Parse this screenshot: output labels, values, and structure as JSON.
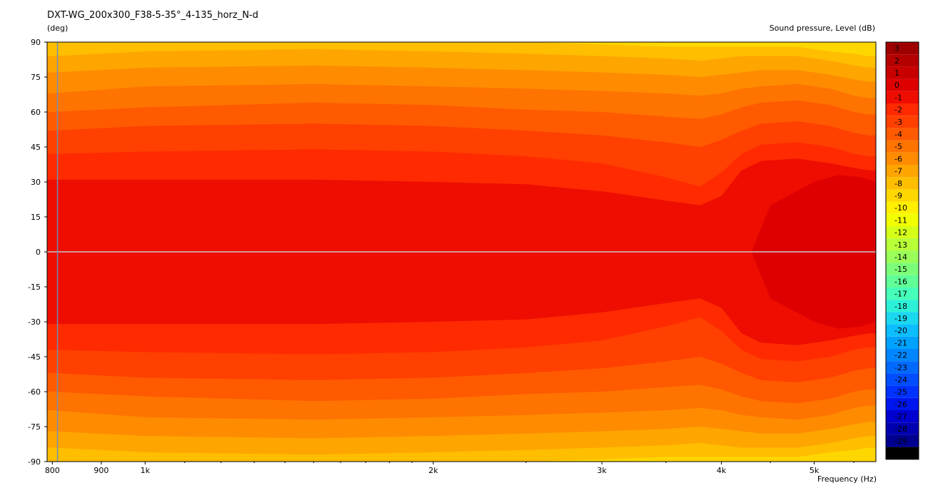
{
  "title": "DXT-WG_200x300_F38-5-35°_4-135_horz_N-d",
  "y_unit": "(deg)",
  "colorbar_label": "Sound pressure, Level  (dB)",
  "x_unit": "Frequency  (Hz)",
  "chart_data": {
    "type": "heatmap",
    "x_scale": "log",
    "xlim": [
      790,
      5800
    ],
    "ylim": [
      -90,
      90
    ],
    "x_ticks": [
      800,
      900,
      1000,
      2000,
      3000,
      4000,
      5000
    ],
    "x_tick_labels": [
      "800",
      "900",
      "1k",
      "2k",
      "3k",
      "4k",
      "5k"
    ],
    "y_ticks": [
      90,
      75,
      60,
      45,
      30,
      15,
      0,
      -15,
      -30,
      -45,
      -60,
      -75,
      -90
    ],
    "y_tick_labels": [
      "90",
      "75",
      "60",
      "45",
      "30",
      "15",
      "0",
      "-15",
      "-30",
      "-45",
      "-60",
      "-75",
      "-90"
    ],
    "colorbar_levels": [
      3,
      2,
      1,
      0,
      -1,
      -2,
      -3,
      -4,
      -5,
      -6,
      -7,
      -8,
      -9,
      -10,
      -11,
      -12,
      -13,
      -14,
      -15,
      -16,
      -17,
      -18,
      -19,
      -20,
      -21,
      -22,
      -23,
      -24,
      -25,
      -26,
      -27,
      -28,
      -29,
      -30
    ],
    "colorbar_colors": [
      "#9e0000",
      "#b50000",
      "#c80000",
      "#de0000",
      "#ee0d00",
      "#ff2a00",
      "#ff4000",
      "#ff5a00",
      "#ff7300",
      "#ff8c00",
      "#ffa500",
      "#ffbe00",
      "#ffd700",
      "#fff000",
      "#f2ff00",
      "#d6ff18",
      "#b8ff38",
      "#9aff58",
      "#7cff78",
      "#60ff98",
      "#46ffb8",
      "#2cf0d8",
      "#1ad8f0",
      "#0bbeff",
      "#00a2ff",
      "#0086ff",
      "#006aff",
      "#004eff",
      "#0032ff",
      "#0016f0",
      "#0000d0",
      "#0000b0",
      "#000090",
      "#000000"
    ],
    "contours": [
      {
        "level": -1,
        "x": [
          800,
          1000,
          1500,
          2000,
          2500,
          3000,
          3500,
          3800,
          4000,
          4200,
          4400,
          4800,
          5200,
          5500,
          5700
        ],
        "y": [
          31,
          31,
          31,
          30,
          29,
          26,
          22,
          20,
          24,
          35,
          39,
          40,
          38,
          36,
          35
        ]
      },
      {
        "level": -2,
        "x": [
          800,
          1000,
          1500,
          2000,
          2500,
          3000,
          3500,
          3800,
          4000,
          4200,
          4400,
          4800,
          5200,
          5500,
          5700
        ],
        "y": [
          42,
          43,
          44,
          43,
          41,
          38,
          32,
          28,
          34,
          42,
          46,
          47,
          45,
          42,
          41
        ]
      },
      {
        "level": -3,
        "x": [
          800,
          1000,
          1500,
          2000,
          2500,
          3000,
          3500,
          3800,
          4000,
          4200,
          4400,
          4800,
          5200,
          5500,
          5700
        ],
        "y": [
          52,
          54,
          55,
          54,
          52,
          50,
          47,
          45,
          48,
          52,
          55,
          56,
          54,
          51,
          50
        ]
      },
      {
        "level": -4,
        "x": [
          800,
          1000,
          1500,
          2000,
          2500,
          3000,
          3500,
          3800,
          4000,
          4200,
          4400,
          4800,
          5200,
          5500,
          5700
        ],
        "y": [
          60,
          62,
          64,
          63,
          61,
          60,
          58,
          57,
          59,
          62,
          64,
          65,
          63,
          60,
          59
        ]
      },
      {
        "level": -5,
        "x": [
          800,
          1000,
          1500,
          2000,
          2500,
          3000,
          3500,
          3800,
          4000,
          4200,
          4400,
          4800,
          5200,
          5500,
          5700
        ],
        "y": [
          68,
          71,
          72,
          71,
          70,
          69,
          68,
          67,
          68,
          70,
          71,
          72,
          70,
          67,
          66
        ]
      },
      {
        "level": -6,
        "x": [
          800,
          1000,
          1500,
          2000,
          2500,
          3000,
          3500,
          3800,
          4000,
          4200,
          4400,
          4800,
          5200,
          5500,
          5700
        ],
        "y": [
          77,
          79,
          80,
          79,
          78,
          77,
          76,
          75,
          76,
          77,
          78,
          78,
          76,
          74,
          73
        ]
      },
      {
        "level": -7,
        "x": [
          800,
          1000,
          1500,
          2000,
          2500,
          3000,
          3500,
          3800,
          4000,
          4200,
          4400,
          4800,
          5200,
          5500,
          5700
        ],
        "y": [
          84,
          86,
          87,
          86,
          85,
          84,
          83,
          82,
          83,
          84,
          84,
          84,
          82,
          80,
          79
        ]
      },
      {
        "level": -8,
        "x": [
          800,
          1000,
          1500,
          2000,
          2500,
          3000,
          3500,
          3800,
          4000,
          4200,
          4400,
          4800,
          5200,
          5500,
          5700
        ],
        "y": [
          90,
          91,
          92,
          91,
          90,
          89,
          88,
          88,
          88,
          88,
          88,
          88,
          86,
          85,
          84
        ]
      },
      {
        "level": -9,
        "x": [
          800,
          1000,
          1500,
          2000,
          2500,
          3000,
          3500,
          3800,
          4000,
          4200,
          4400,
          4800,
          5200,
          5500,
          5700
        ],
        "y": [
          94,
          95,
          96,
          96,
          95,
          95,
          94,
          94,
          94,
          93,
          92,
          92,
          91,
          90,
          90
        ]
      }
    ],
    "peak_region": {
      "level": 0,
      "x": [
        4300,
        4500,
        5000,
        5300,
        5600,
        5800
      ],
      "y": [
        0,
        20,
        30,
        33,
        32,
        30
      ]
    },
    "reference_lines": {
      "y": 0,
      "x": 810
    }
  }
}
